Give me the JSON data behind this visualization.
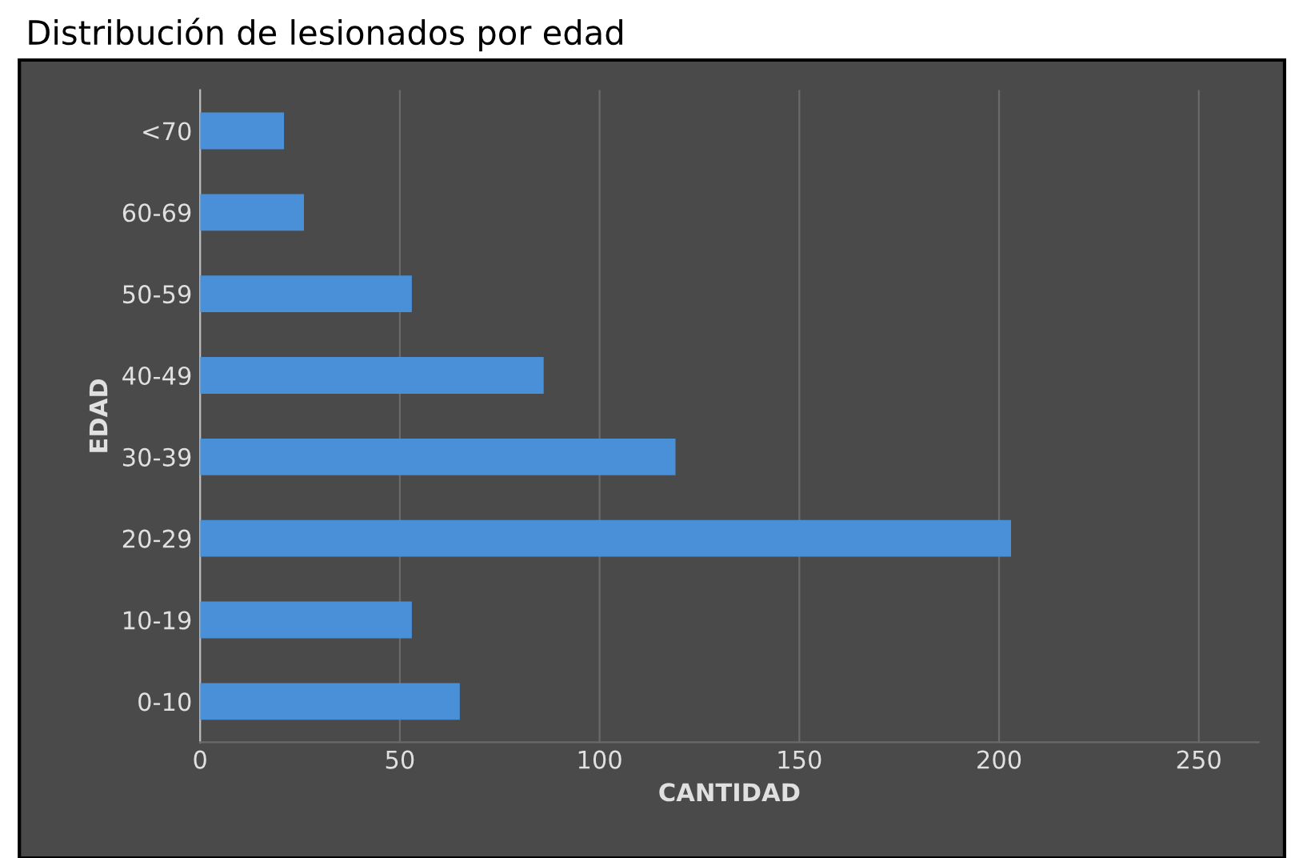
{
  "chart_data": {
    "type": "bar",
    "orientation": "horizontal",
    "title": "Distribución de lesionados por edad",
    "xlabel": "CANTIDAD",
    "ylabel": "EDAD",
    "categories": [
      "<70",
      "60-69",
      "50-59",
      "40-49",
      "30-39",
      "20-29",
      "10-19",
      "0-10"
    ],
    "values": [
      21,
      26,
      53,
      86,
      119,
      203,
      53,
      65
    ],
    "color": "#4a90d9",
    "xlim": [
      0,
      265
    ],
    "xticks": [
      0,
      50,
      100,
      150,
      200,
      250
    ],
    "grid": "x",
    "legend": false
  }
}
